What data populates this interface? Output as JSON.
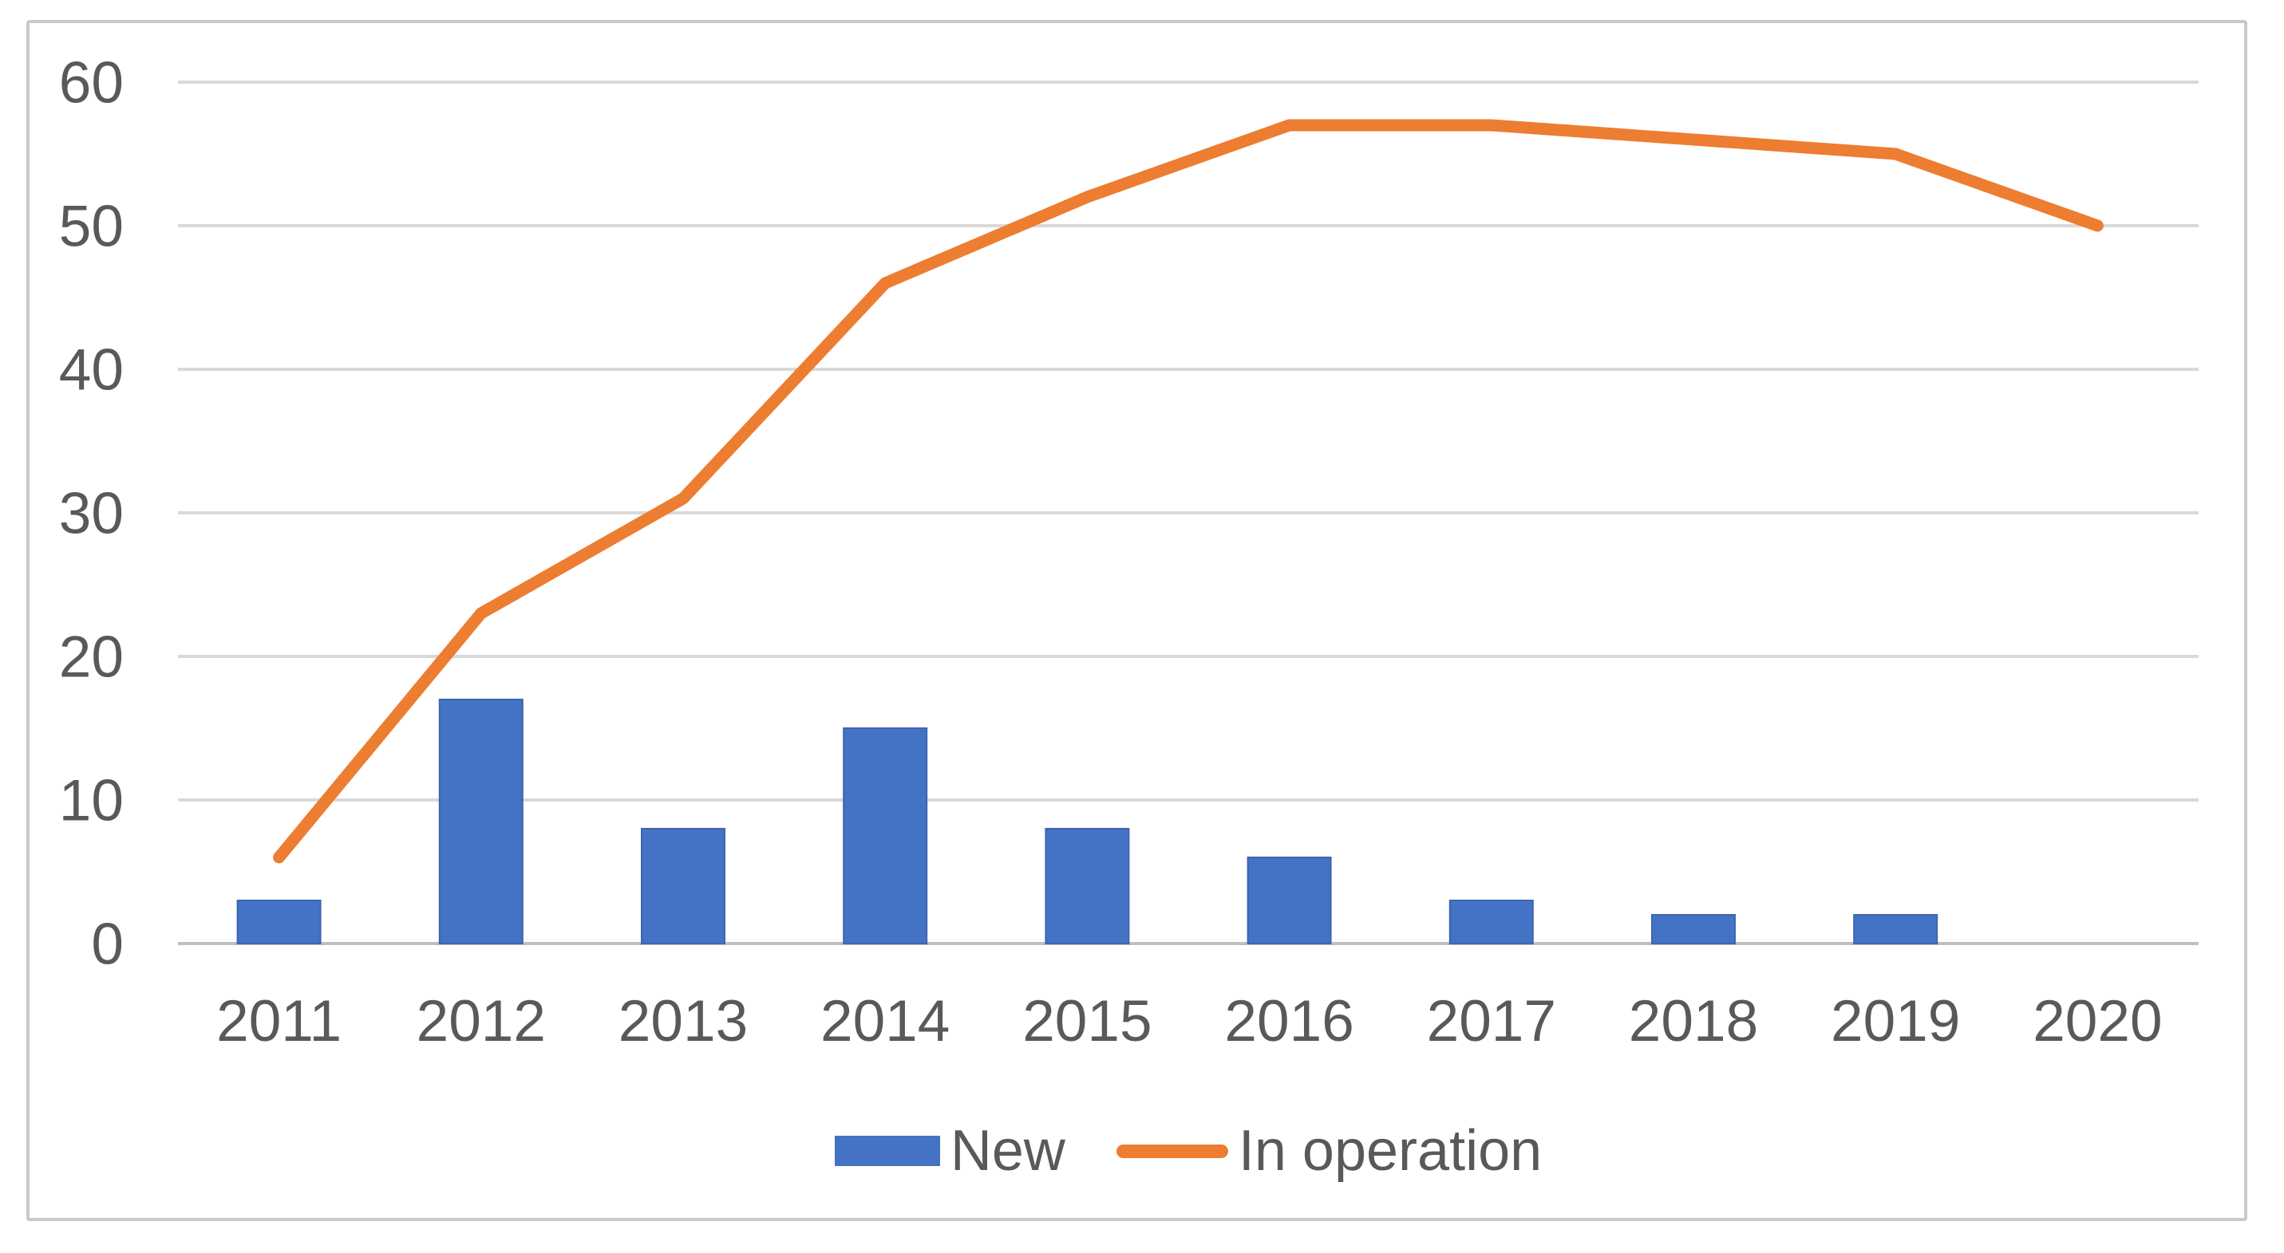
{
  "chart_data": {
    "type": "bar",
    "subtype": "combo-bar-line",
    "title": "",
    "xlabel": "",
    "ylabel": "",
    "categories": [
      "2011",
      "2012",
      "2013",
      "2014",
      "2015",
      "2016",
      "2017",
      "2018",
      "2019",
      "2020"
    ],
    "series": [
      {
        "name": "New",
        "type": "bar",
        "color": "#4472C4",
        "edge_color": "#3d66b0",
        "values": [
          3,
          17,
          8,
          15,
          8,
          6,
          3,
          2,
          2,
          0
        ]
      },
      {
        "name": "In operation",
        "type": "line",
        "color": "#ED7D31",
        "values": [
          6,
          23,
          31,
          46,
          52,
          57,
          57,
          56,
          55,
          50
        ]
      }
    ],
    "ylim": [
      0,
      60
    ],
    "ytick_interval": 10,
    "yticks": [
      "0",
      "10",
      "20",
      "30",
      "40",
      "50",
      "60"
    ],
    "grid": true,
    "gridline_color": "#d9d9d9",
    "zero_axis_color": "#bfbfbf",
    "tick_label_color": "#595959",
    "frame_border_color": "#c9c9c9",
    "legend_position": "bottom"
  },
  "legend": {
    "items": [
      {
        "label": "New",
        "swatch": "bar-swatch-icon",
        "color": "#4472C4"
      },
      {
        "label": "In operation",
        "swatch": "line-swatch-icon",
        "color": "#ED7D31"
      }
    ]
  }
}
